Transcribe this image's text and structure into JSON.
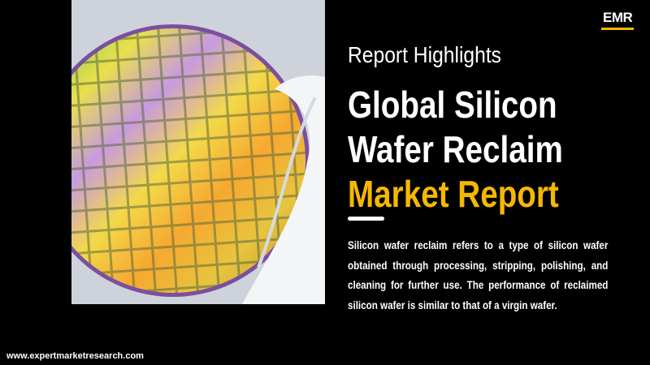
{
  "logo": "EMR",
  "kicker": "Report Highlights",
  "title": [
    "Global Silicon",
    "Wafer Reclaim"
  ],
  "highlight": "Market Report",
  "description": "Silicon wafer reclaim refers to a type of silicon wafer obtained through processing, stripping, polishing, and cleaning for further use. The performance of reclaimed silicon wafer is similar to that of a virgin wafer.",
  "website": "www.expertmarketresearch.com"
}
